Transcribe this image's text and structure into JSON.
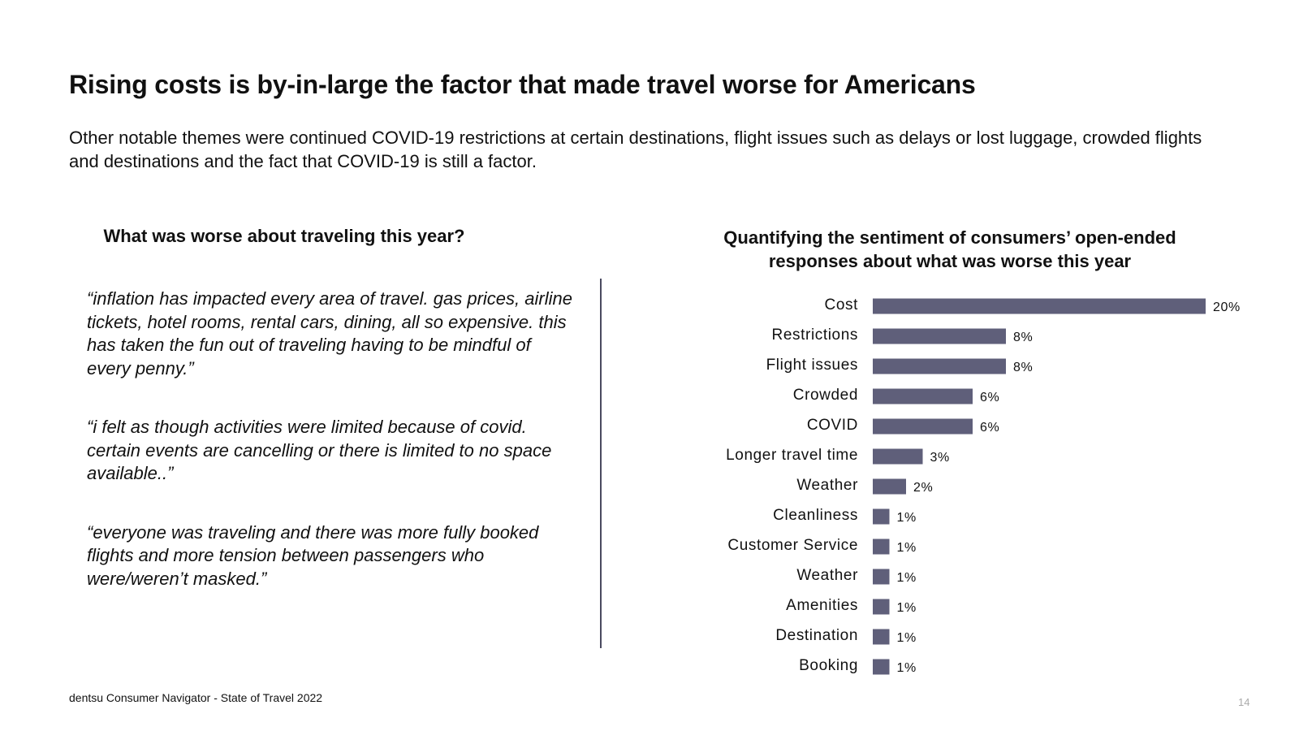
{
  "slide": {
    "title": "Rising costs is by-in-large the factor that made travel worse for Americans",
    "subtitle": "Other notable themes were continued COVID-19 restrictions at certain destinations, flight issues such as delays or lost luggage, crowded flights and destinations and the fact that COVID-19 is still a factor.",
    "left_heading": "What was worse about traveling this year?",
    "quotes": [
      "“inflation has impacted every area of travel.   gas prices, airline tickets, hotel rooms, rental cars, dining, all so expensive.  this has taken the fun out of traveling having to be mindful of every penny.”",
      "“i felt as though activities were limited because of covid. certain events are cancelling or there is limited to no space available..”",
      "“everyone was traveling and there was more fully booked flights and more tension between passengers who were/weren’t masked.”"
    ],
    "footer": "dentsu Consumer Navigator - State of Travel 2022",
    "page_number": "14"
  },
  "chart_data": {
    "type": "bar",
    "orientation": "horizontal",
    "title": "Quantifying the sentiment of consumers’ open-ended responses about what was worse this year",
    "categories": [
      "Cost",
      "Restrictions",
      "Flight issues",
      "Crowded",
      "COVID",
      "Longer travel time",
      "Weather",
      "Cleanliness",
      "Customer Service",
      "Weather",
      "Amenities",
      "Destination",
      "Booking"
    ],
    "values": [
      20,
      8,
      8,
      6,
      6,
      3,
      2,
      1,
      1,
      1,
      1,
      1,
      1
    ],
    "value_labels": [
      "20%",
      "8%",
      "8%",
      "6%",
      "6%",
      "3%",
      "2%",
      "1%",
      "1%",
      "1%",
      "1%",
      "1%",
      "1%"
    ],
    "xlim": [
      0,
      20
    ],
    "bar_color": "#5f5f7a",
    "grid": false
  }
}
